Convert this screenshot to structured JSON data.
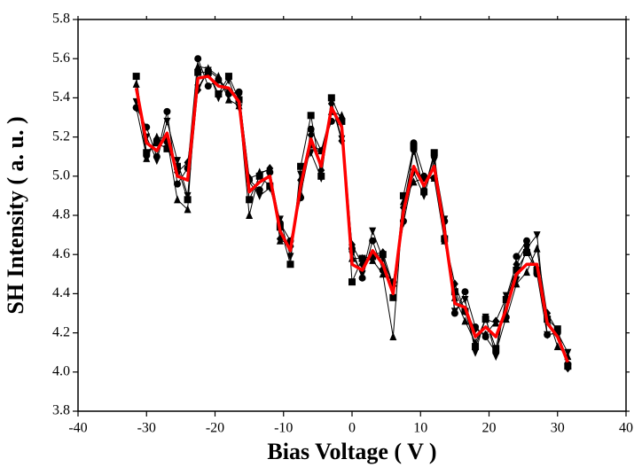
{
  "chart_data": {
    "type": "line",
    "x_label": "Bias Voltage ( V )",
    "y_label": "SH Intensity ( a. u. )",
    "xlim": [
      -40,
      40
    ],
    "xticks": [
      -40,
      -30,
      -20,
      -10,
      0,
      10,
      20,
      30,
      40
    ],
    "ylim": [
      3.8,
      5.8
    ],
    "yticks": [
      3.8,
      {
        "value": 4,
        "label": "4.0"
      },
      4.2,
      4.4,
      4.6,
      4.8,
      {
        "value": 5,
        "label": "5.0"
      },
      5.2,
      5.4,
      5.6,
      5.8
    ],
    "x": [
      -31.5,
      -30,
      -28.5,
      -27,
      -25.5,
      -24,
      -22.5,
      -21,
      -19.5,
      -18,
      -16.5,
      -15,
      -13.5,
      -12,
      -10.5,
      -9,
      -7.5,
      -6,
      -4.5,
      -3,
      -1.5,
      0,
      1.5,
      3,
      4.5,
      6,
      7.5,
      9,
      10.5,
      12,
      13.5,
      15,
      16.5,
      18,
      19.5,
      21,
      22.5,
      24,
      25.5,
      27,
      28.5,
      30,
      31.5
    ],
    "series": [
      {
        "color": "#000000",
        "marker": "square",
        "line_width": 1,
        "values": [
          5.51,
          5.12,
          5.17,
          5.14,
          5.05,
          4.88,
          5.53,
          5.53,
          5.42,
          5.51,
          5.39,
          4.88,
          5.0,
          4.95,
          4.74,
          4.55,
          5.05,
          5.31,
          5.0,
          5.4,
          5.28,
          4.46,
          4.58,
          4.59,
          4.6,
          4.38,
          4.9,
          5.15,
          4.92,
          5.12,
          4.68,
          4.41,
          4.31,
          4.13,
          4.27,
          4.12,
          4.37,
          4.52,
          4.61,
          4.52,
          4.27,
          4.22,
          4.03
        ]
      },
      {
        "color": "#000000",
        "marker": "circle",
        "line_width": 1,
        "values": [
          5.35,
          5.25,
          5.1,
          5.33,
          4.96,
          5.04,
          5.6,
          5.46,
          5.49,
          5.42,
          5.43,
          4.98,
          4.93,
          5.02,
          4.76,
          4.67,
          4.89,
          5.24,
          5.13,
          5.28,
          5.29,
          4.63,
          4.48,
          4.67,
          4.52,
          4.46,
          4.77,
          5.17,
          5.0,
          4.99,
          4.77,
          4.3,
          4.41,
          4.23,
          4.18,
          4.1,
          4.28,
          4.59,
          4.67,
          4.5,
          4.19,
          4.2,
          4.04
        ]
      },
      {
        "color": "#000000",
        "marker": "triangle-up",
        "line_width": 1,
        "values": [
          5.47,
          5.09,
          5.2,
          5.19,
          4.88,
          4.83,
          5.56,
          5.55,
          5.51,
          5.39,
          5.36,
          4.8,
          5.02,
          5.03,
          4.67,
          4.66,
          4.91,
          5.16,
          5.13,
          5.33,
          5.31,
          4.58,
          4.58,
          4.57,
          4.5,
          4.18,
          4.87,
          4.97,
          4.99,
          4.99,
          4.67,
          4.38,
          4.26,
          4.15,
          4.27,
          4.25,
          4.27,
          4.45,
          4.51,
          4.63,
          4.29,
          4.13,
          4.08
        ]
      },
      {
        "color": "#000000",
        "marker": "triangle-down",
        "line_width": 1,
        "values": [
          5.38,
          5.2,
          5.08,
          5.28,
          5.08,
          4.9,
          5.45,
          5.54,
          5.4,
          5.49,
          5.35,
          4.97,
          4.9,
          4.94,
          4.78,
          4.59,
          5.01,
          5.12,
          4.99,
          5.38,
          5.19,
          4.6,
          4.5,
          4.72,
          4.58,
          4.44,
          4.76,
          5.02,
          4.9,
          5.08,
          4.78,
          4.31,
          4.37,
          4.1,
          4.28,
          4.08,
          4.39,
          4.47,
          4.63,
          4.7,
          4.19,
          4.2,
          4.1
        ]
      },
      {
        "color": "#000000",
        "marker": "diamond",
        "line_width": 1,
        "values": [
          5.35,
          5.1,
          5.19,
          5.17,
          5.02,
          5.07,
          5.44,
          5.54,
          5.5,
          5.43,
          5.42,
          4.99,
          5.01,
          5.04,
          4.68,
          4.64,
          4.98,
          5.21,
          5.03,
          5.37,
          5.18,
          4.65,
          4.55,
          4.6,
          4.61,
          4.44,
          4.84,
          5.13,
          4.93,
          5.1,
          4.69,
          4.45,
          4.31,
          4.22,
          4.19,
          4.26,
          4.38,
          4.55,
          4.65,
          4.52,
          4.3,
          4.21,
          4.02
        ]
      },
      {
        "color": "#ff0000",
        "line_width": 3.5,
        "values": [
          5.45,
          5.17,
          5.13,
          5.22,
          5.0,
          4.98,
          5.5,
          5.51,
          5.46,
          5.45,
          5.38,
          4.92,
          4.97,
          5.0,
          4.72,
          4.62,
          4.95,
          5.19,
          5.05,
          5.35,
          5.25,
          4.55,
          4.52,
          4.62,
          4.55,
          4.4,
          4.82,
          5.05,
          4.95,
          5.05,
          4.72,
          4.35,
          4.33,
          4.18,
          4.23,
          4.18,
          4.32,
          4.5,
          4.55,
          4.55,
          4.25,
          4.18,
          4.05
        ]
      }
    ]
  }
}
